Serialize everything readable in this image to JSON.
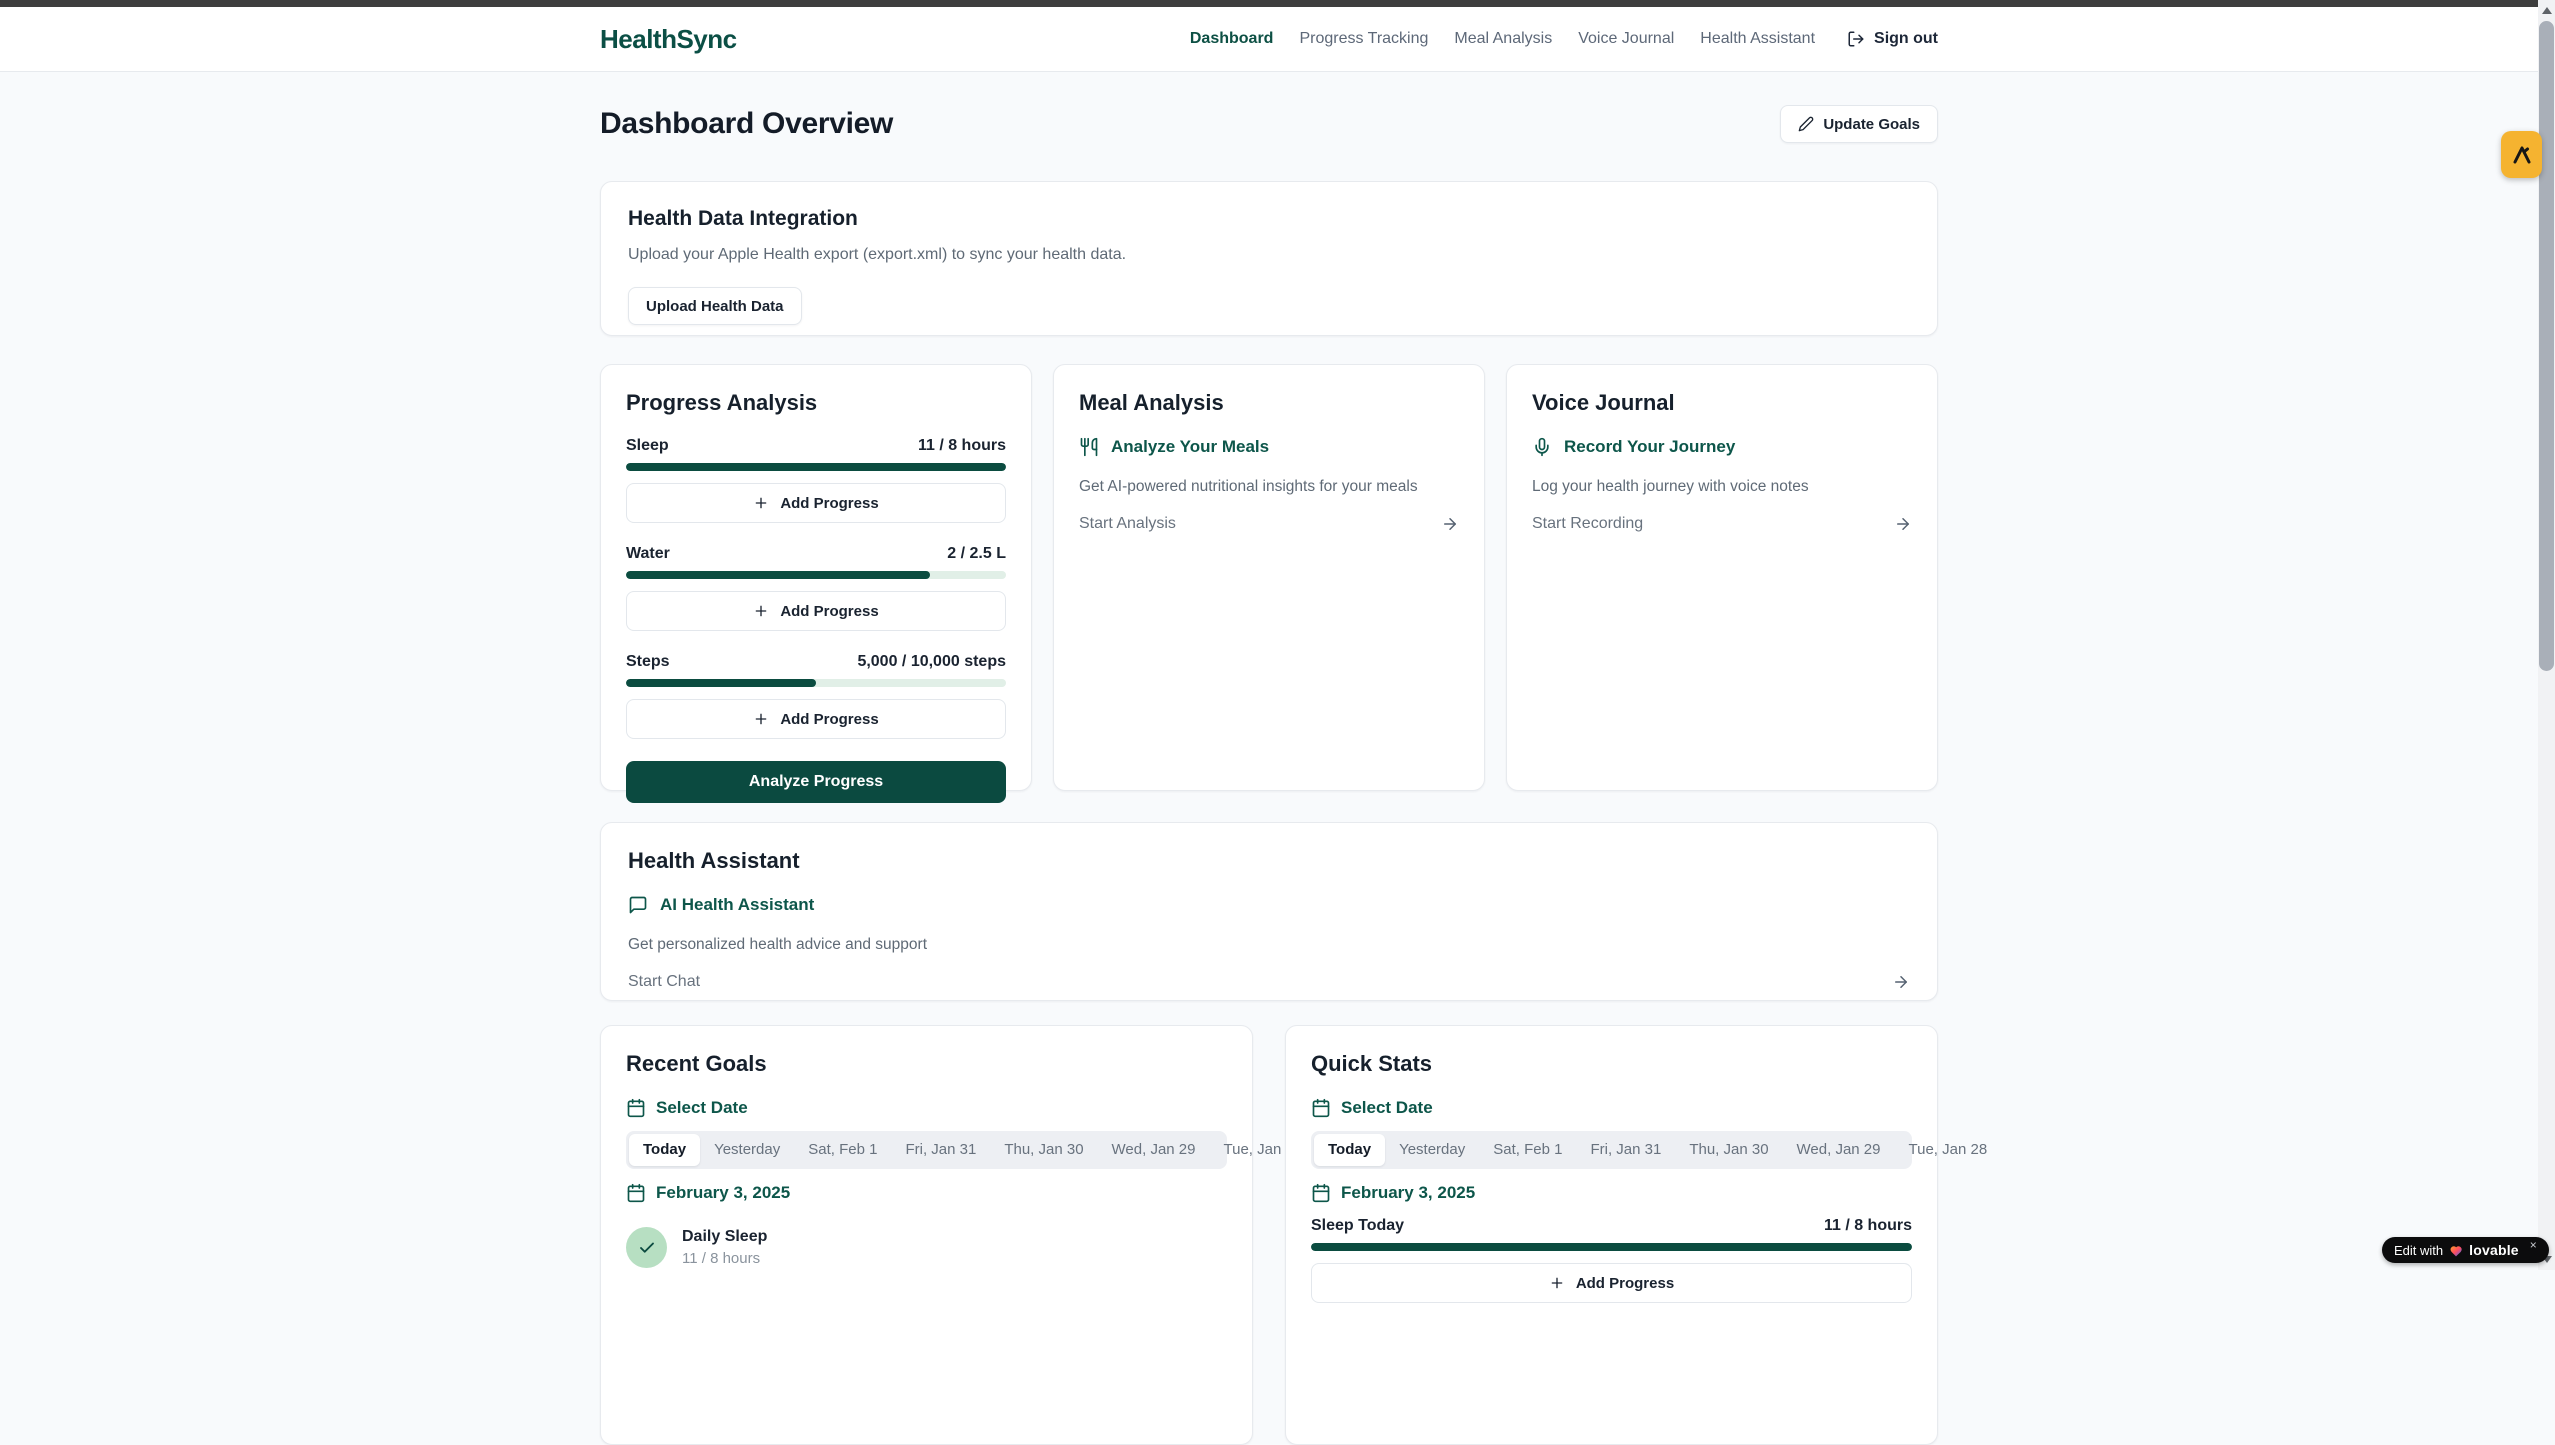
{
  "nav": {
    "logo": "HealthSync",
    "links": [
      {
        "label": "Dashboard",
        "active": true
      },
      {
        "label": "Progress Tracking",
        "active": false
      },
      {
        "label": "Meal Analysis",
        "active": false
      },
      {
        "label": "Voice Journal",
        "active": false
      },
      {
        "label": "Health Assistant",
        "active": false
      }
    ],
    "sign_out_label": "Sign out"
  },
  "page": {
    "title": "Dashboard Overview",
    "update_goals_label": "Update Goals"
  },
  "health_data": {
    "title": "Health Data Integration",
    "description": "Upload your Apple Health export (export.xml) to sync your health data.",
    "upload_label": "Upload Health Data"
  },
  "progress_analysis": {
    "title": "Progress Analysis",
    "add_label": "Add Progress",
    "analyze_label": "Analyze Progress",
    "metrics": [
      {
        "label": "Sleep",
        "value": "11 / 8 hours",
        "percent": 100
      },
      {
        "label": "Water",
        "value": "2 / 2.5 L",
        "percent": 80
      },
      {
        "label": "Steps",
        "value": "5,000 / 10,000 steps",
        "percent": 50
      }
    ]
  },
  "meal_analysis": {
    "title": "Meal Analysis",
    "link_label": "Analyze Your Meals",
    "description": "Get AI-powered nutritional insights for your meals",
    "action_label": "Start Analysis"
  },
  "voice_journal": {
    "title": "Voice Journal",
    "link_label": "Record Your Journey",
    "description": "Log your health journey with voice notes",
    "action_label": "Start Recording"
  },
  "health_assistant": {
    "title": "Health Assistant",
    "link_label": "AI Health Assistant",
    "description": "Get personalized health advice and support",
    "action_label": "Start Chat"
  },
  "date_tabs": [
    "Today",
    "Yesterday",
    "Sat, Feb 1",
    "Fri, Jan 31",
    "Thu, Jan 30",
    "Wed, Jan 29",
    "Tue, Jan 28"
  ],
  "selected_tab": "Today",
  "recent_goals": {
    "title": "Recent Goals",
    "select_date_label": "Select Date",
    "date": "February 3, 2025",
    "goals": [
      {
        "name": "Daily Sleep",
        "value": "11 / 8 hours",
        "completed": true
      }
    ]
  },
  "quick_stats": {
    "title": "Quick Stats",
    "select_date_label": "Select Date",
    "date": "February 3, 2025",
    "stat": {
      "label": "Sleep Today",
      "value": "11 / 8 hours",
      "percent": 100
    },
    "add_label": "Add Progress"
  },
  "badges": {
    "edit_prefix": "Edit with",
    "brand": "lovable",
    "close": "×"
  },
  "icons": {
    "logout": "log-out-icon",
    "pencil": "pencil-icon",
    "plus": "plus-icon",
    "utensils": "utensils-icon",
    "mic": "microphone-icon",
    "chat": "message-square-icon",
    "calendar": "calendar-icon",
    "arrow": "arrow-right-icon",
    "check": "check-icon",
    "heart": "heart-icon"
  },
  "colors": {
    "primary_dark_green": "#0b4a40",
    "link_green": "#0d564a",
    "progress_track": "#e1efe7",
    "check_circle_bg": "#b7dfc2",
    "page_background": "#f8fafc",
    "badge_amber": "#f5b330",
    "muted_text": "#5f6a76"
  }
}
